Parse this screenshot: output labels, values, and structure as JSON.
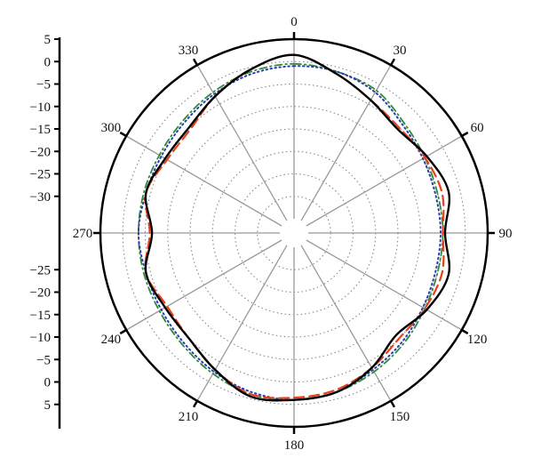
{
  "chart_data": {
    "type": "polar-line",
    "title": "",
    "angle_unit": "degrees",
    "angle_labels": [
      "0",
      "30",
      "60",
      "90",
      "120",
      "150",
      "180",
      "210",
      "240",
      "270",
      "300",
      "330"
    ],
    "angle_ticks": [
      0,
      30,
      60,
      90,
      120,
      150,
      180,
      210,
      240,
      270,
      300,
      330
    ],
    "r_scale": {
      "min": -35,
      "max": 5,
      "step": 5
    },
    "r_axis_tick_labels": [
      "5",
      "0",
      "−5",
      "−10",
      "−15",
      "−20",
      "−25",
      "−30",
      "−25",
      "−20",
      "−15",
      "−10",
      "−5",
      "0",
      "5"
    ],
    "grid": true,
    "colors": {
      "black": "#000000",
      "red": "#e8401c",
      "blue": "#2b3da8",
      "green": "#2e8b3c",
      "grid": "#888888",
      "spoke": "#999999"
    },
    "series": [
      {
        "style": "solid",
        "color": "#000000",
        "theta": [
          0,
          15,
          30,
          45,
          60,
          75,
          90,
          105,
          120,
          135,
          150,
          165,
          180,
          195,
          210,
          225,
          240,
          255,
          270,
          285,
          300,
          315,
          330,
          345
        ],
        "r": [
          1.5,
          -1.5,
          -4,
          -5.5,
          -4,
          -2.5,
          -4.5,
          -2.5,
          -4,
          -6,
          -3.5,
          -1.5,
          -1,
          -0.5,
          -3,
          -5,
          -5,
          -4,
          -6.5,
          -4,
          -5,
          -5,
          -3,
          -0.5
        ]
      },
      {
        "style": "dashed",
        "color": "#e8401c",
        "theta": [
          0,
          15,
          30,
          45,
          60,
          75,
          90,
          105,
          120,
          135,
          150,
          165,
          180,
          195,
          210,
          225,
          240,
          255,
          270,
          285,
          300,
          315,
          330,
          345
        ],
        "r": [
          1.5,
          -1.5,
          -4,
          -5,
          -4.5,
          -4,
          -5,
          -4,
          -4.5,
          -5,
          -3.5,
          -2,
          -1.5,
          -1,
          -3,
          -5,
          -5.5,
          -4,
          -6,
          -4,
          -5.5,
          -5.5,
          -3,
          -0.5
        ]
      },
      {
        "style": "dotted",
        "color": "#2b3da8",
        "theta": [
          0,
          15,
          30,
          45,
          60,
          75,
          90,
          105,
          120,
          135,
          150,
          165,
          180,
          195,
          210,
          225,
          240,
          255,
          270,
          285,
          300,
          315,
          330,
          345
        ],
        "r": [
          -1,
          -1,
          -2,
          -4,
          -5,
          -5.5,
          -5.5,
          -5.5,
          -5,
          -4,
          -3,
          -1.5,
          -1,
          -1.5,
          -2.5,
          -3.5,
          -4,
          -4,
          -3.5,
          -4,
          -4,
          -3.5,
          -2.5,
          -1.5
        ]
      },
      {
        "style": "dash-dot",
        "color": "#2e8b3c",
        "theta": [
          0,
          15,
          30,
          45,
          60,
          75,
          90,
          105,
          120,
          135,
          150,
          165,
          180,
          195,
          210,
          225,
          240,
          255,
          270,
          285,
          300,
          315,
          330,
          345
        ],
        "r": [
          -0.5,
          -1,
          -1.5,
          -3.5,
          -4.5,
          -5,
          -5,
          -5,
          -4.5,
          -3.5,
          -2.5,
          -1.5,
          -1,
          -1,
          -2,
          -3,
          -3.5,
          -3.5,
          -3.5,
          -3.5,
          -3.5,
          -3,
          -2,
          -1
        ]
      }
    ]
  }
}
